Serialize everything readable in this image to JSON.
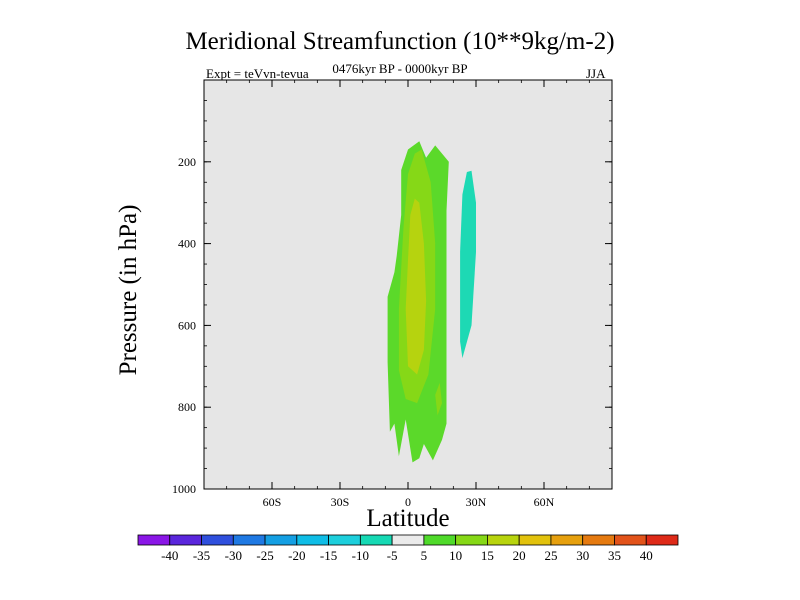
{
  "title": "Meridional Streamfunction (10**9kg/m-2)",
  "subtitle_left": "Expt = teVvn-tevua",
  "subtitle_center": "0476kyr BP - 0000kyr BP",
  "subtitle_right": "JJA",
  "chart_data": {
    "type": "heatmap",
    "title": "Meridional Streamfunction (10**9kg/m-2)",
    "xlabel": "Latitude",
    "ylabel": "Pressure (in hPa)",
    "xlim": [
      -90,
      90
    ],
    "ylim": [
      1000,
      0
    ],
    "x_ticks": [
      {
        "value": -60,
        "label": "60S"
      },
      {
        "value": -30,
        "label": "30S"
      },
      {
        "value": 0,
        "label": "0"
      },
      {
        "value": 30,
        "label": "30N"
      },
      {
        "value": 60,
        "label": "60N"
      }
    ],
    "y_ticks": [
      {
        "value": 200,
        "label": "200"
      },
      {
        "value": 400,
        "label": "400"
      },
      {
        "value": 600,
        "label": "600"
      },
      {
        "value": 800,
        "label": "800"
      },
      {
        "value": 1000,
        "label": "1000"
      }
    ],
    "background_color": "#e6e6e6",
    "colorbar": {
      "labels": [
        "-40",
        "-35",
        "-30",
        "-25",
        "-20",
        "-15",
        "-10",
        "-5",
        "5",
        "10",
        "15",
        "20",
        "25",
        "30",
        "35",
        "40"
      ],
      "colors": [
        "#8a16e6",
        "#5a26dc",
        "#2f4fdd",
        "#1f79e3",
        "#149fe3",
        "#0fbde6",
        "#1dcfdc",
        "#16d9b4",
        "#ebebeb",
        "#4fda2a",
        "#86d816",
        "#b8d40e",
        "#e2c20c",
        "#e6a00e",
        "#e57a10",
        "#e2531a",
        "#de2a18"
      ]
    },
    "contours": [
      {
        "level": "5 to 10",
        "color": "#5bd92a",
        "points": [
          [
            -9,
            530
          ],
          [
            -9,
            690
          ],
          [
            -8,
            860
          ],
          [
            -6,
            840
          ],
          [
            -4,
            920
          ],
          [
            -1,
            830
          ],
          [
            2,
            935
          ],
          [
            5,
            925
          ],
          [
            7,
            890
          ],
          [
            11,
            930
          ],
          [
            15,
            880
          ],
          [
            17,
            840
          ],
          [
            17,
            560
          ],
          [
            17,
            320
          ],
          [
            18,
            200
          ],
          [
            12,
            160
          ],
          [
            8,
            190
          ],
          [
            5,
            150
          ],
          [
            0,
            170
          ],
          [
            -3,
            220
          ],
          [
            -3,
            330
          ],
          [
            -5,
            430
          ],
          [
            -6,
            470
          ]
        ]
      },
      {
        "level": "10 to 15",
        "color": "#86d817",
        "points": [
          [
            -2,
            360
          ],
          [
            -4,
            560
          ],
          [
            -4,
            710
          ],
          [
            -1,
            780
          ],
          [
            4,
            790
          ],
          [
            9,
            720
          ],
          [
            12,
            560
          ],
          [
            12,
            400
          ],
          [
            10,
            250
          ],
          [
            6,
            170
          ],
          [
            3,
            180
          ],
          [
            0,
            230
          ]
        ]
      },
      {
        "level": "15 to 20",
        "color": "#b6d30f",
        "points": [
          [
            0,
            440
          ],
          [
            -1,
            560
          ],
          [
            0,
            700
          ],
          [
            4,
            720
          ],
          [
            7,
            660
          ],
          [
            8,
            540
          ],
          [
            7,
            400
          ],
          [
            5,
            300
          ],
          [
            3,
            290
          ],
          [
            1,
            330
          ]
        ]
      },
      {
        "level": "10 to 15",
        "color": "#86d817",
        "points": [
          [
            12,
            770
          ],
          [
            14,
            740
          ],
          [
            15,
            790
          ],
          [
            13,
            820
          ]
        ]
      },
      {
        "level": "-10 to -5",
        "color": "#1dd9b4",
        "points": [
          [
            24,
            280
          ],
          [
            26,
            225
          ],
          [
            28,
            222
          ],
          [
            30,
            300
          ],
          [
            30,
            420
          ],
          [
            28,
            600
          ],
          [
            24,
            680
          ],
          [
            23,
            640
          ],
          [
            23,
            420
          ]
        ]
      }
    ]
  }
}
